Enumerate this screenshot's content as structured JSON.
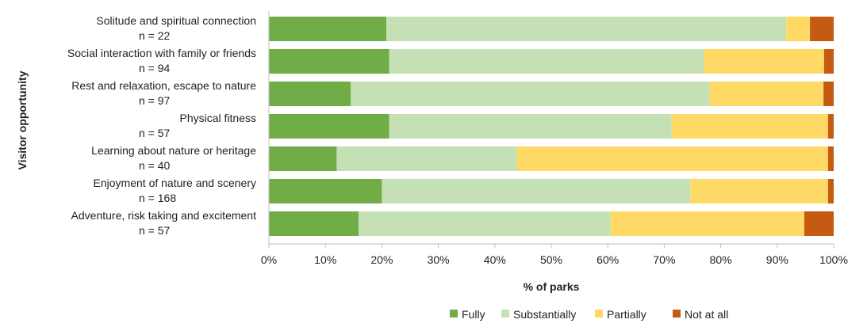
{
  "chart_data": {
    "type": "bar",
    "orientation": "horizontal",
    "stacked": true,
    "xlabel": "% of parks",
    "ylabel": "Visitor opportunity",
    "xlim": [
      0,
      100
    ],
    "xticks": [
      "0%",
      "10%",
      "20%",
      "30%",
      "40%",
      "50%",
      "60%",
      "70%",
      "80%",
      "90%",
      "100%"
    ],
    "grid": false,
    "legend_position": "bottom",
    "categories": [
      {
        "name": "Solitude and spiritual connection",
        "n": "n = 22"
      },
      {
        "name": "Social interaction with family or friends",
        "n": "n = 94"
      },
      {
        "name": "Rest and relaxation, escape to nature",
        "n": "n = 97"
      },
      {
        "name": "Physical fitness",
        "n": "n = 57"
      },
      {
        "name": "Learning about nature or heritage",
        "n": "n = 40"
      },
      {
        "name": "Enjoyment of nature and scenery",
        "n": "n = 168"
      },
      {
        "name": "Adventure, risk taking and excitement",
        "n": "n = 57"
      }
    ],
    "series": [
      {
        "name": "Fully",
        "color": "#70ad47",
        "values": [
          20.8,
          21.3,
          14.5,
          21.3,
          12.0,
          20.0,
          15.9
        ]
      },
      {
        "name": "Substantially",
        "color": "#c5e0b4",
        "values": [
          70.8,
          55.7,
          63.5,
          50.0,
          31.9,
          54.6,
          44.6
        ]
      },
      {
        "name": "Partially",
        "color": "#ffd966",
        "values": [
          4.2,
          21.3,
          20.2,
          27.7,
          55.1,
          24.4,
          34.3
        ]
      },
      {
        "name": "Not at all",
        "color": "#c55a11",
        "values": [
          4.2,
          1.7,
          1.8,
          1.0,
          1.0,
          1.0,
          5.2
        ]
      }
    ]
  }
}
